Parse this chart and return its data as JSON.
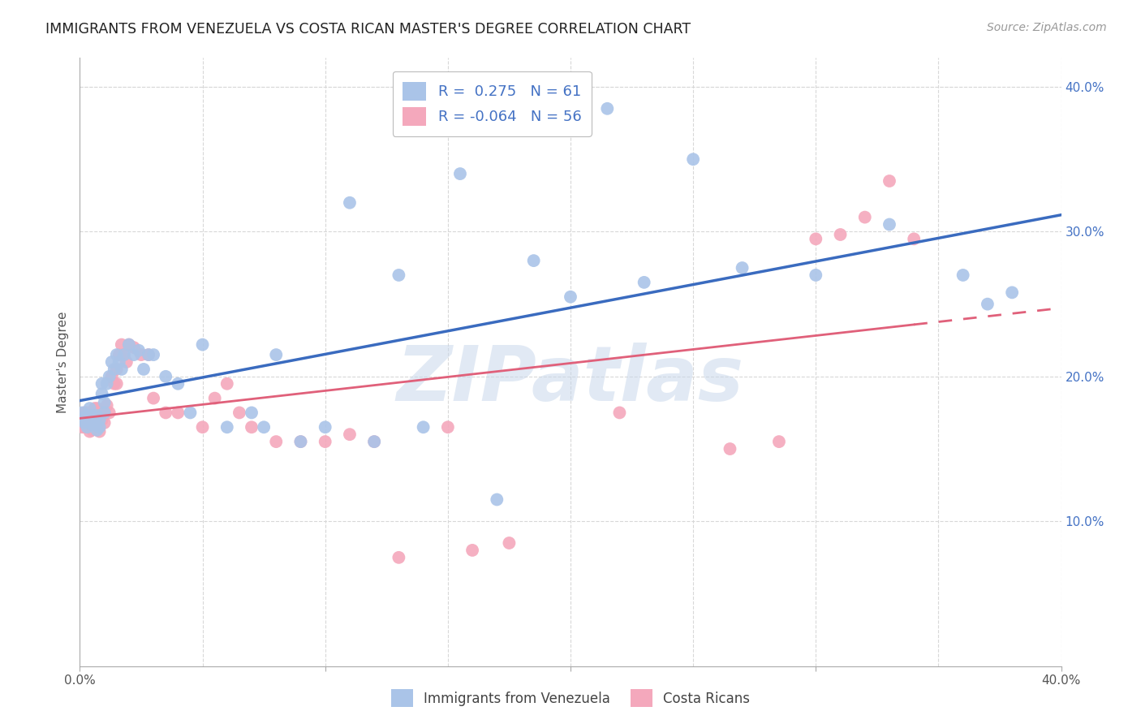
{
  "title": "IMMIGRANTS FROM VENEZUELA VS COSTA RICAN MASTER'S DEGREE CORRELATION CHART",
  "source": "Source: ZipAtlas.com",
  "ylabel": "Master's Degree",
  "watermark": "ZIPatlas",
  "legend_r1": "R =  0.275",
  "legend_n1": "N = 61",
  "legend_r2": "R = -0.064",
  "legend_n2": "N = 56",
  "color_blue": "#aac4e8",
  "color_pink": "#f4a8bc",
  "color_line_blue": "#3a6bbf",
  "color_line_pink": "#e0607a",
  "blue_x": [
    0.001,
    0.001,
    0.002,
    0.002,
    0.003,
    0.003,
    0.004,
    0.004,
    0.005,
    0.005,
    0.006,
    0.006,
    0.007,
    0.007,
    0.008,
    0.008,
    0.009,
    0.009,
    0.01,
    0.01,
    0.011,
    0.012,
    0.013,
    0.014,
    0.015,
    0.016,
    0.017,
    0.018,
    0.02,
    0.022,
    0.024,
    0.026,
    0.028,
    0.03,
    0.035,
    0.04,
    0.045,
    0.05,
    0.06,
    0.07,
    0.075,
    0.08,
    0.09,
    0.1,
    0.11,
    0.12,
    0.13,
    0.14,
    0.155,
    0.17,
    0.185,
    0.2,
    0.215,
    0.23,
    0.25,
    0.27,
    0.3,
    0.33,
    0.36,
    0.37,
    0.38
  ],
  "blue_y": [
    0.175,
    0.17,
    0.172,
    0.168,
    0.173,
    0.165,
    0.178,
    0.168,
    0.173,
    0.167,
    0.172,
    0.168,
    0.173,
    0.163,
    0.17,
    0.165,
    0.195,
    0.188,
    0.182,
    0.175,
    0.195,
    0.2,
    0.21,
    0.205,
    0.215,
    0.21,
    0.205,
    0.215,
    0.222,
    0.215,
    0.218,
    0.205,
    0.215,
    0.215,
    0.2,
    0.195,
    0.175,
    0.222,
    0.165,
    0.175,
    0.165,
    0.215,
    0.155,
    0.165,
    0.32,
    0.155,
    0.27,
    0.165,
    0.34,
    0.115,
    0.28,
    0.255,
    0.385,
    0.265,
    0.35,
    0.275,
    0.27,
    0.305,
    0.27,
    0.25,
    0.258
  ],
  "pink_x": [
    0.001,
    0.001,
    0.002,
    0.002,
    0.003,
    0.003,
    0.004,
    0.004,
    0.005,
    0.005,
    0.006,
    0.006,
    0.007,
    0.008,
    0.009,
    0.01,
    0.01,
    0.011,
    0.012,
    0.013,
    0.014,
    0.015,
    0.015,
    0.016,
    0.017,
    0.018,
    0.019,
    0.02,
    0.022,
    0.025,
    0.028,
    0.03,
    0.035,
    0.04,
    0.05,
    0.055,
    0.06,
    0.065,
    0.07,
    0.08,
    0.09,
    0.1,
    0.11,
    0.12,
    0.13,
    0.15,
    0.16,
    0.175,
    0.22,
    0.265,
    0.285,
    0.3,
    0.31,
    0.32,
    0.33,
    0.34
  ],
  "pink_y": [
    0.172,
    0.165,
    0.175,
    0.165,
    0.175,
    0.168,
    0.168,
    0.162,
    0.168,
    0.163,
    0.178,
    0.172,
    0.178,
    0.162,
    0.17,
    0.175,
    0.168,
    0.18,
    0.175,
    0.2,
    0.195,
    0.205,
    0.195,
    0.215,
    0.222,
    0.215,
    0.21,
    0.222,
    0.22,
    0.215,
    0.215,
    0.185,
    0.175,
    0.175,
    0.165,
    0.185,
    0.195,
    0.175,
    0.165,
    0.155,
    0.155,
    0.155,
    0.16,
    0.155,
    0.075,
    0.165,
    0.08,
    0.085,
    0.175,
    0.15,
    0.155,
    0.295,
    0.298,
    0.31,
    0.335,
    0.295
  ],
  "xlim": [
    0.0,
    0.4
  ],
  "ylim": [
    0.0,
    0.42
  ],
  "ytick_right": [
    0.1,
    0.2,
    0.3,
    0.4
  ],
  "ytick_right_labels": [
    "10.0%",
    "20.0%",
    "30.0%",
    "40.0%"
  ],
  "xtick_positions": [
    0.0,
    0.1,
    0.2,
    0.3,
    0.4
  ],
  "xtick_labels": [
    "0.0%",
    "",
    "",
    "",
    "40.0%"
  ],
  "background_color": "#ffffff",
  "grid_color": "#d8d8d8"
}
